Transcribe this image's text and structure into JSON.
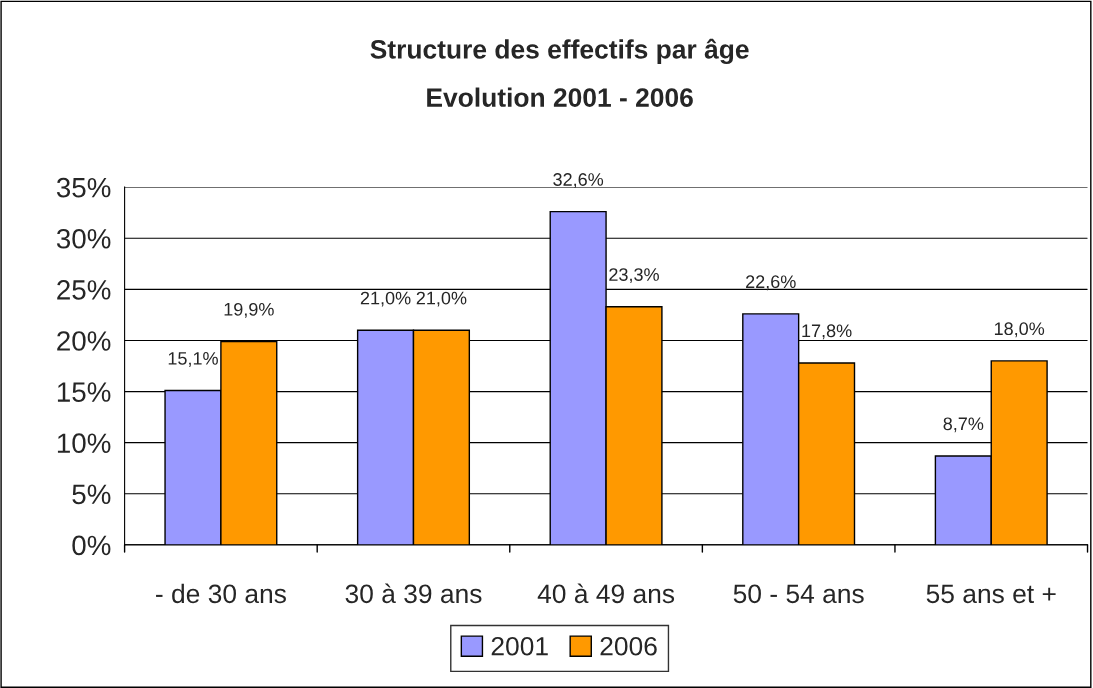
{
  "chart_data": {
    "type": "bar",
    "title": "Structure des effectifs par âge",
    "subtitle": "Evolution 2001 - 2006",
    "categories": [
      "- de 30 ans",
      "30 à 39 ans",
      "40 à 49 ans",
      "50 - 54 ans",
      "55 ans et +"
    ],
    "series": [
      {
        "name": "2001",
        "color": "#9999ff",
        "values": [
          15.1,
          21.0,
          32.6,
          22.6,
          8.7
        ],
        "value_labels": [
          "15,1%",
          "21,0%",
          "32,6%",
          "22,6%",
          "8,7%"
        ]
      },
      {
        "name": "2006",
        "color": "#ff9900",
        "values": [
          19.9,
          21.0,
          23.3,
          17.8,
          18.0
        ],
        "value_labels": [
          "19,9%",
          "21,0%",
          "23,3%",
          "17,8%",
          "18,0%"
        ]
      }
    ],
    "ylim": [
      0,
      35
    ],
    "yticks": [
      {
        "value": 0,
        "label": "0%"
      },
      {
        "value": 5,
        "label": "5%"
      },
      {
        "value": 10,
        "label": "10%"
      },
      {
        "value": 15,
        "label": "15%"
      },
      {
        "value": 20,
        "label": "20%"
      },
      {
        "value": 25,
        "label": "25%"
      },
      {
        "value": 30,
        "label": "30%"
      },
      {
        "value": 35,
        "label": "35%"
      }
    ],
    "grid": "y",
    "legend": "bottom"
  }
}
